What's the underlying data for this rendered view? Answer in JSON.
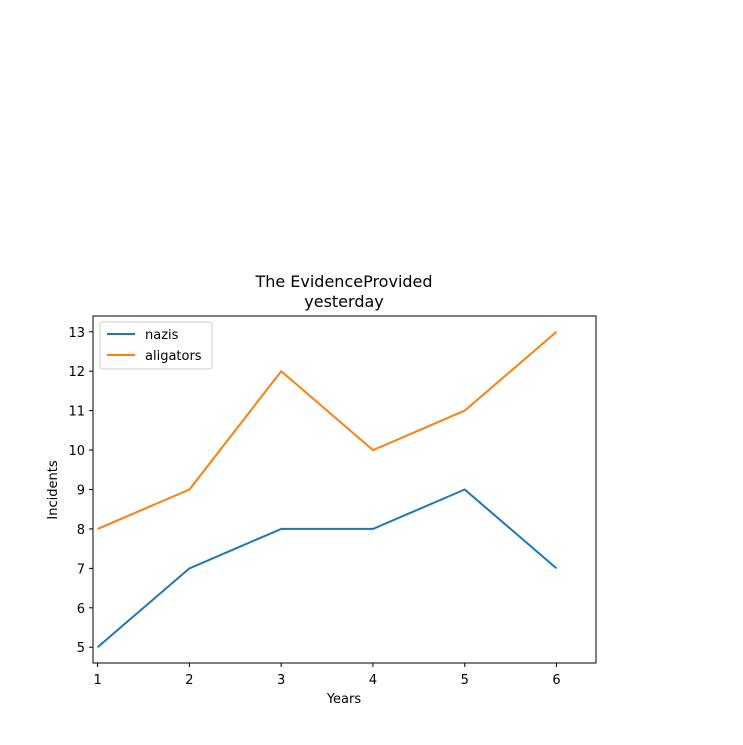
{
  "chart_data": {
    "type": "line",
    "title_lines": [
      "The EvidenceProvided",
      "yesterday"
    ],
    "xlabel": "Years",
    "ylabel": "Incidents",
    "x": [
      1,
      2,
      3,
      4,
      5,
      6
    ],
    "xticks": [
      "1",
      "2",
      "3",
      "4",
      "5",
      "6"
    ],
    "yticks": [
      "5",
      "6",
      "7",
      "8",
      "9",
      "10",
      "11",
      "12",
      "13"
    ],
    "xlim": [
      0.95,
      6.43
    ],
    "ylim": [
      4.6,
      13.4
    ],
    "series": [
      {
        "name": "nazis",
        "color": "#1f77b4",
        "values": [
          5,
          7,
          8,
          8,
          9,
          7
        ]
      },
      {
        "name": "aligators",
        "color": "#ff7f0e",
        "values": [
          8,
          9,
          12,
          10,
          11,
          13
        ]
      }
    ],
    "legend": "upper-left",
    "grid": false
  }
}
